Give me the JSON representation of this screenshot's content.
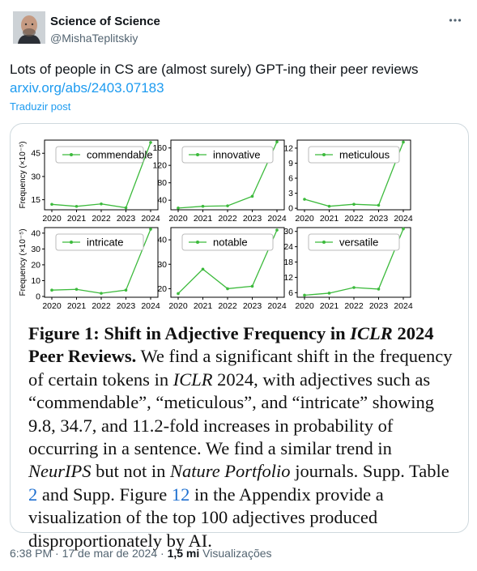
{
  "author": {
    "name": "Science of Science",
    "handle": "@MishaTeplitskiy"
  },
  "post": {
    "text": "Lots of people in CS are (almost surely) GPT-ing their peer reviews",
    "link": "arxiv.org/abs/2403.07183",
    "translate": "Traduzir post"
  },
  "meta": {
    "time": "6:38 PM",
    "date": "17 de mar de 2024",
    "views_count": "1,5 mi",
    "views_label": "Visualizações"
  },
  "icons": {
    "more": "more-horizontal-icon"
  },
  "figure": {
    "caption": {
      "label": "Figure 1:",
      "title_1": "Shift in Adjective Frequency in ",
      "title_em": "ICLR",
      "title_2": " 2024 Peer Reviews.",
      "body_1": " We find a significant shift in the frequency of certain tokens in ",
      "body_em1": "ICLR",
      "body_2": " 2024, with adjectives such as “commendable”, “meticulous”, and “intricate” showing 9.8, 34.7, and 11.2-fold increases in probability of occurring in a sentence. We find a similar trend in ",
      "body_em2": "NeurIPS",
      "body_3": " but not in ",
      "body_em3": "Nature Portfolio",
      "body_4": " journals. Supp. Table ",
      "ref_table": "2",
      "body_5": " and Supp. Figure ",
      "ref_fig": "12",
      "body_6": " in the Appendix provide a visualization of the top 100 adjectives produced disproportionately by AI."
    }
  },
  "chart_data": [
    {
      "type": "line",
      "title": "",
      "legend": "commendable",
      "x": [
        2020,
        2021,
        2022,
        2023,
        2024
      ],
      "values": [
        12.0,
        10.7,
        12.3,
        9.8,
        52.0
      ],
      "xlabel": "",
      "ylabel": "Frequency (×10⁻⁵)",
      "yticks": [
        15,
        30,
        45
      ],
      "ylim": [
        8.5,
        53.5
      ],
      "xticks": [
        "2020",
        "2021",
        "2022",
        "2023",
        "2024"
      ],
      "line_color": "#3cba3c"
    },
    {
      "type": "line",
      "title": "",
      "legend": "innovative",
      "x": [
        2020,
        2021,
        2022,
        2023,
        2024
      ],
      "values": [
        22,
        26,
        27,
        49,
        174
      ],
      "xlabel": "",
      "ylabel": "",
      "yticks": [
        40,
        80,
        120,
        160
      ],
      "ylim": [
        18,
        178
      ],
      "xticks": [
        "2020",
        "2021",
        "2022",
        "2023",
        "2024"
      ],
      "line_color": "#3cba3c"
    },
    {
      "type": "line",
      "title": "",
      "legend": "meticulous",
      "x": [
        2020,
        2021,
        2022,
        2023,
        2024
      ],
      "values": [
        1.8,
        0.4,
        0.8,
        0.6,
        13.2
      ],
      "xlabel": "",
      "ylabel": "",
      "yticks": [
        0,
        3,
        6,
        9,
        12
      ],
      "ylim": [
        -0.3,
        13.6
      ],
      "xticks": [
        "2020",
        "2021",
        "2022",
        "2023",
        "2024"
      ],
      "line_color": "#3cba3c"
    },
    {
      "type": "line",
      "title": "",
      "legend": "intricate",
      "x": [
        2020,
        2021,
        2022,
        2023,
        2024
      ],
      "values": [
        4.0,
        4.5,
        2.0,
        4.0,
        42.5
      ],
      "xlabel": "",
      "ylabel": "Frequency (×10⁻⁵)",
      "yticks": [
        0,
        10,
        20,
        30,
        40
      ],
      "ylim": [
        -0.5,
        43.5
      ],
      "xticks": [
        "2020",
        "2021",
        "2022",
        "2023",
        "2024"
      ],
      "line_color": "#3cba3c"
    },
    {
      "type": "line",
      "title": "",
      "legend": "notable",
      "x": [
        2020,
        2021,
        2022,
        2023,
        2024
      ],
      "values": [
        18,
        28,
        20,
        21,
        44
      ],
      "xlabel": "",
      "ylabel": "",
      "yticks": [
        20,
        30,
        40
      ],
      "ylim": [
        16.5,
        45
      ],
      "xticks": [
        "2020",
        "2021",
        "2022",
        "2023",
        "2024"
      ],
      "line_color": "#3cba3c"
    },
    {
      "type": "line",
      "title": "",
      "legend": "versatile",
      "x": [
        2020,
        2021,
        2022,
        2023,
        2024
      ],
      "values": [
        5.0,
        5.8,
        8.0,
        7.4,
        31.0
      ],
      "xlabel": "",
      "ylabel": "",
      "yticks": [
        6,
        12,
        18,
        24,
        30
      ],
      "ylim": [
        4.2,
        31.5
      ],
      "xticks": [
        "2020",
        "2021",
        "2022",
        "2023",
        "2024"
      ],
      "line_color": "#3cba3c"
    }
  ]
}
